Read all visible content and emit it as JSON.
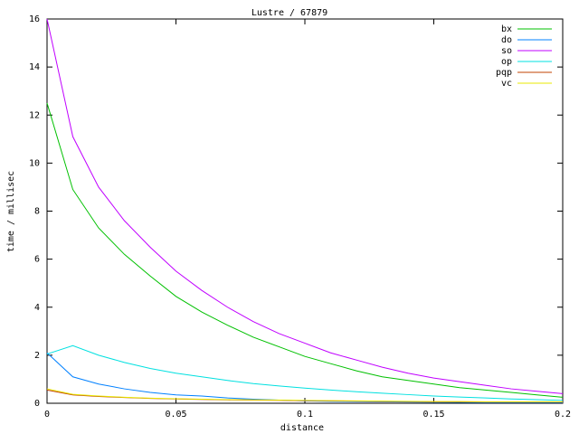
{
  "chart_data": {
    "type": "line",
    "title": "Lustre / 67879",
    "x_label": "distance",
    "y_label": "time / millisec",
    "x": [
      0,
      0.01,
      0.02,
      0.03,
      0.04,
      0.05,
      0.06,
      0.07,
      0.08,
      0.09,
      0.1,
      0.11,
      0.12,
      0.13,
      0.14,
      0.15,
      0.16,
      0.17,
      0.18,
      0.19,
      0.2
    ],
    "series": [
      {
        "name": "bx",
        "color": "#00c000",
        "values": [
          12.5,
          8.9,
          7.3,
          6.2,
          5.3,
          4.45,
          3.8,
          3.25,
          2.75,
          2.35,
          1.95,
          1.65,
          1.35,
          1.1,
          0.95,
          0.8,
          0.65,
          0.55,
          0.45,
          0.35,
          0.25
        ]
      },
      {
        "name": "do",
        "color": "#0080ff",
        "values": [
          2.1,
          1.1,
          0.8,
          0.6,
          0.45,
          0.35,
          0.3,
          0.22,
          0.17,
          0.13,
          0.1,
          0.08,
          0.07,
          0.06,
          0.05,
          0.04,
          0.04,
          0.03,
          0.03,
          0.03,
          0.03
        ]
      },
      {
        "name": "so",
        "color": "#c000ff",
        "values": [
          16,
          11.1,
          9.0,
          7.6,
          6.5,
          5.5,
          4.7,
          4.0,
          3.4,
          2.9,
          2.5,
          2.1,
          1.8,
          1.5,
          1.25,
          1.05,
          0.9,
          0.75,
          0.6,
          0.5,
          0.4
        ]
      },
      {
        "name": "op",
        "color": "#00e0e0",
        "values": [
          2.05,
          2.4,
          2.0,
          1.7,
          1.45,
          1.25,
          1.1,
          0.95,
          0.82,
          0.72,
          0.63,
          0.55,
          0.48,
          0.42,
          0.36,
          0.3,
          0.26,
          0.22,
          0.18,
          0.15,
          0.12
        ]
      },
      {
        "name": "pqp",
        "color": "#c04000",
        "values": [
          0.55,
          0.35,
          0.28,
          0.24,
          0.2,
          0.18,
          0.16,
          0.14,
          0.13,
          0.12,
          0.11,
          0.1,
          0.09,
          0.08,
          0.07,
          0.06,
          0.06,
          0.05,
          0.05,
          0.05,
          0.05
        ]
      },
      {
        "name": "vc",
        "color": "#e8e800",
        "values": [
          0.6,
          0.37,
          0.3,
          0.25,
          0.21,
          0.19,
          0.17,
          0.15,
          0.14,
          0.13,
          0.12,
          0.11,
          0.1,
          0.09,
          0.08,
          0.07,
          0.07,
          0.06,
          0.06,
          0.06,
          0.06
        ]
      }
    ],
    "xlim": [
      0,
      0.2
    ],
    "xticks": [
      0,
      0.05,
      0.1,
      0.15,
      0.2
    ],
    "ylim": [
      0,
      16
    ],
    "yticks": [
      0,
      2,
      4,
      6,
      8,
      10,
      12,
      14,
      16
    ],
    "legend": "top-right"
  }
}
